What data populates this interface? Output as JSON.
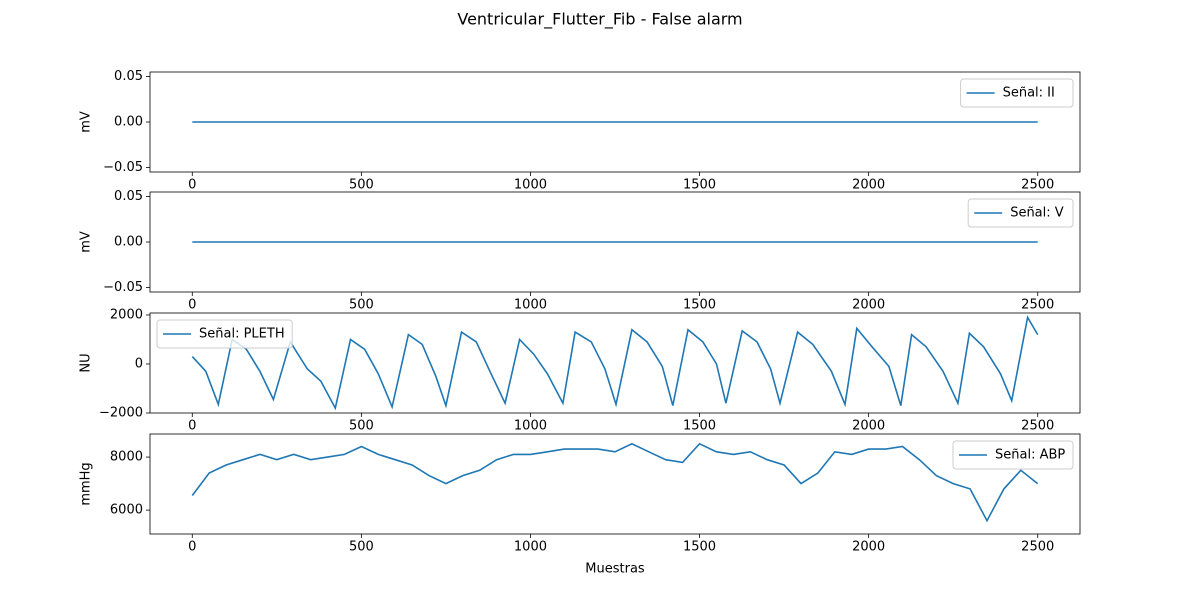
{
  "title": "Ventricular_Flutter_Fib - False alarm",
  "chart_data": [
    {
      "type": "line",
      "ylabel": "mV",
      "x": [
        0,
        2500
      ],
      "xlim": [
        -125,
        2625
      ],
      "xticks": [
        0,
        500,
        1000,
        1500,
        2000,
        2500
      ],
      "ylim": [
        -0.055,
        0.055
      ],
      "yticks": [
        {
          "value": -0.05,
          "label": "−0.05"
        },
        {
          "value": 0,
          "label": "0.00"
        },
        {
          "value": 0.05,
          "label": "0.05"
        }
      ],
      "legend": "upper right",
      "series": [
        {
          "name": "Señal: II",
          "color": "#1f77b4",
          "values": [
            0,
            0
          ]
        }
      ]
    },
    {
      "type": "line",
      "ylabel": "mV",
      "x": [
        0,
        2500
      ],
      "xlim": [
        -125,
        2625
      ],
      "xticks": [
        0,
        500,
        1000,
        1500,
        2000,
        2500
      ],
      "ylim": [
        -0.055,
        0.055
      ],
      "yticks": [
        {
          "value": -0.05,
          "label": "−0.05"
        },
        {
          "value": 0,
          "label": "0.00"
        },
        {
          "value": 0.05,
          "label": "0.05"
        }
      ],
      "legend": "upper right",
      "series": [
        {
          "name": "Señal: V",
          "color": "#1f77b4",
          "values": [
            0,
            0
          ]
        }
      ]
    },
    {
      "type": "line",
      "ylabel": "NU",
      "x": [
        0,
        40,
        77,
        118,
        160,
        200,
        240,
        290,
        340,
        380,
        423,
        468,
        510,
        550,
        591,
        639,
        680,
        720,
        750,
        796,
        840,
        880,
        925,
        968,
        1010,
        1050,
        1096,
        1132,
        1180,
        1220,
        1253,
        1300,
        1345,
        1390,
        1421,
        1466,
        1510,
        1550,
        1578,
        1626,
        1670,
        1710,
        1738,
        1790,
        1835,
        1890,
        1930,
        1965,
        2010,
        2060,
        2095,
        2127,
        2170,
        2220,
        2264,
        2298,
        2340,
        2390,
        2423,
        2470,
        2500
      ],
      "xlim": [
        -125,
        2625
      ],
      "xticks": [
        0,
        500,
        1000,
        1500,
        2000,
        2500
      ],
      "ylim": [
        -2000,
        2080
      ],
      "yticks": [
        {
          "value": -2000,
          "label": "−2000"
        },
        0,
        2000
      ],
      "legend": "upper left",
      "series": [
        {
          "name": "Señal: PLETH",
          "color": "#1f77b4",
          "values": [
            300,
            -300,
            -1650,
            1000,
            600,
            -300,
            -1450,
            900,
            -200,
            -700,
            -1800,
            1000,
            600,
            -400,
            -1750,
            1200,
            800,
            -500,
            -1700,
            1300,
            900,
            -300,
            -1600,
            1000,
            400,
            -400,
            -1600,
            1300,
            900,
            -200,
            -1650,
            1400,
            900,
            -100,
            -1700,
            1400,
            900,
            0,
            -1600,
            1350,
            900,
            -200,
            -1600,
            1300,
            800,
            -300,
            -1650,
            1450,
            700,
            -100,
            -1700,
            1200,
            700,
            -300,
            -1600,
            1250,
            700,
            -400,
            -1500,
            1900,
            1200
          ]
        }
      ]
    },
    {
      "type": "line",
      "ylabel": "mmHg",
      "xlabel": "Muestras",
      "x": [
        0,
        50,
        100,
        150,
        200,
        250,
        300,
        350,
        400,
        450,
        500,
        550,
        600,
        650,
        700,
        750,
        800,
        850,
        900,
        950,
        1000,
        1050,
        1100,
        1150,
        1200,
        1250,
        1300,
        1350,
        1400,
        1450,
        1500,
        1550,
        1600,
        1650,
        1700,
        1750,
        1800,
        1850,
        1900,
        1950,
        2000,
        2050,
        2100,
        2150,
        2200,
        2250,
        2300,
        2350,
        2400,
        2450,
        2500
      ],
      "xlim": [
        -125,
        2625
      ],
      "xticks": [
        0,
        500,
        1000,
        1500,
        2000,
        2500
      ],
      "ylim": [
        5100,
        8870
      ],
      "yticks": [
        6000,
        8000
      ],
      "legend": "upper right",
      "series": [
        {
          "name": "Señal: ABP",
          "color": "#1f77b4",
          "values": [
            6550,
            7400,
            7700,
            7900,
            8100,
            7900,
            8100,
            7900,
            8000,
            8100,
            8400,
            8100,
            7900,
            7700,
            7300,
            7000,
            7300,
            7500,
            7900,
            8100,
            8100,
            8200,
            8300,
            8300,
            8300,
            8200,
            8500,
            8200,
            7900,
            7800,
            8500,
            8200,
            8100,
            8200,
            7900,
            7700,
            7000,
            7400,
            8200,
            8100,
            8300,
            8300,
            8400,
            7900,
            7300,
            7000,
            6800,
            5600,
            6800,
            7500,
            7000
          ]
        }
      ]
    }
  ]
}
